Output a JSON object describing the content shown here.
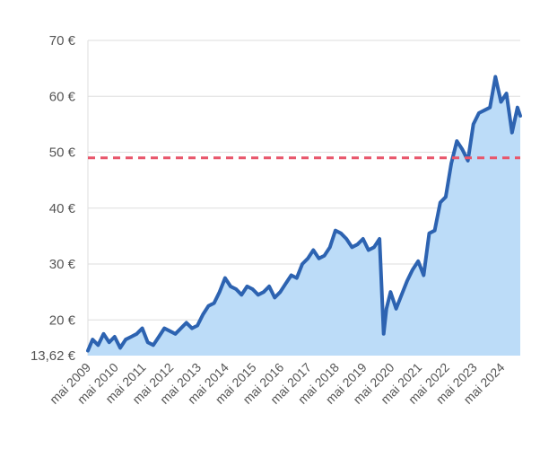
{
  "chart_data": {
    "type": "area",
    "title": "",
    "xlabel": "",
    "ylabel": "",
    "ylim": [
      13.62,
      70
    ],
    "y_ticks": [
      {
        "value": 13.62,
        "label": "13,62 €"
      },
      {
        "value": 20,
        "label": "20 €"
      },
      {
        "value": 30,
        "label": "30 €"
      },
      {
        "value": 40,
        "label": "40 €"
      },
      {
        "value": 50,
        "label": "50 €"
      },
      {
        "value": 60,
        "label": "60 €"
      },
      {
        "value": 70,
        "label": "70 €"
      }
    ],
    "xlim": [
      2009.33,
      2025.0
    ],
    "x_ticks": [
      {
        "value": 2009.33,
        "label": "mai 2009"
      },
      {
        "value": 2010.33,
        "label": "mai 2010"
      },
      {
        "value": 2011.33,
        "label": "mai 2011"
      },
      {
        "value": 2012.33,
        "label": "mai 2012"
      },
      {
        "value": 2013.33,
        "label": "mai 2013"
      },
      {
        "value": 2014.33,
        "label": "mai 2014"
      },
      {
        "value": 2015.33,
        "label": "mai 2015"
      },
      {
        "value": 2016.33,
        "label": "mai 2016"
      },
      {
        "value": 2017.33,
        "label": "mai 2017"
      },
      {
        "value": 2018.33,
        "label": "mai 2018"
      },
      {
        "value": 2019.33,
        "label": "mai 2019"
      },
      {
        "value": 2020.33,
        "label": "mai 2020"
      },
      {
        "value": 2021.33,
        "label": "mai 2021"
      },
      {
        "value": 2022.33,
        "label": "mai 2022"
      },
      {
        "value": 2023.33,
        "label": "mai 2023"
      },
      {
        "value": 2024.33,
        "label": "mai 2024"
      }
    ],
    "grid": true,
    "reference_line": {
      "value": 49,
      "style": "dashed",
      "color": "#e8566b"
    },
    "colors": {
      "line": "#2d63b1",
      "fill": "#bcdcf8",
      "grid": "#dddddd",
      "text": "#555555"
    },
    "series": [
      {
        "x": [
          2009.33,
          2009.5,
          2009.7,
          2009.9,
          2010.1,
          2010.3,
          2010.5,
          2010.7,
          2010.9,
          2011.1,
          2011.3,
          2011.5,
          2011.7,
          2011.9,
          2012.1,
          2012.3,
          2012.5,
          2012.7,
          2012.9,
          2013.1,
          2013.3,
          2013.5,
          2013.7,
          2013.9,
          2014.1,
          2014.3,
          2014.5,
          2014.7,
          2014.9,
          2015.1,
          2015.3,
          2015.5,
          2015.7,
          2015.9,
          2016.1,
          2016.3,
          2016.5,
          2016.7,
          2016.9,
          2017.1,
          2017.3,
          2017.5,
          2017.7,
          2017.9,
          2018.1,
          2018.3,
          2018.5,
          2018.7,
          2018.9,
          2019.1,
          2019.3,
          2019.5,
          2019.7,
          2019.9,
          2020.05,
          2020.15,
          2020.3,
          2020.5,
          2020.7,
          2020.9,
          2021.1,
          2021.3,
          2021.5,
          2021.7,
          2021.9,
          2022.1,
          2022.3,
          2022.5,
          2022.7,
          2022.9,
          2023.1,
          2023.3,
          2023.5,
          2023.7,
          2023.9,
          2024.1,
          2024.3,
          2024.5,
          2024.7,
          2024.9,
          2025.0
        ],
        "values": [
          14.5,
          16.5,
          15.5,
          17.5,
          16.0,
          17.0,
          15.0,
          16.5,
          17.0,
          17.5,
          18.5,
          16.0,
          15.5,
          17.0,
          18.5,
          18.0,
          17.5,
          18.5,
          19.5,
          18.5,
          19.0,
          21.0,
          22.5,
          23.0,
          25.0,
          27.5,
          26.0,
          25.5,
          24.5,
          26.0,
          25.5,
          24.5,
          25.0,
          26.0,
          24.0,
          25.0,
          26.5,
          28.0,
          27.5,
          30.0,
          31.0,
          32.5,
          31.0,
          31.5,
          33.0,
          36.0,
          35.5,
          34.5,
          33.0,
          33.5,
          34.5,
          32.5,
          33.0,
          34.5,
          17.5,
          22.0,
          25.0,
          22.0,
          24.5,
          27.0,
          29.0,
          30.5,
          28.0,
          35.5,
          36.0,
          41.0,
          42.0,
          48.0,
          52.0,
          50.5,
          48.5,
          55.0,
          57.0,
          57.5,
          58.0,
          63.5,
          59.0,
          60.5,
          53.5,
          58.0,
          56.5
        ]
      }
    ]
  }
}
